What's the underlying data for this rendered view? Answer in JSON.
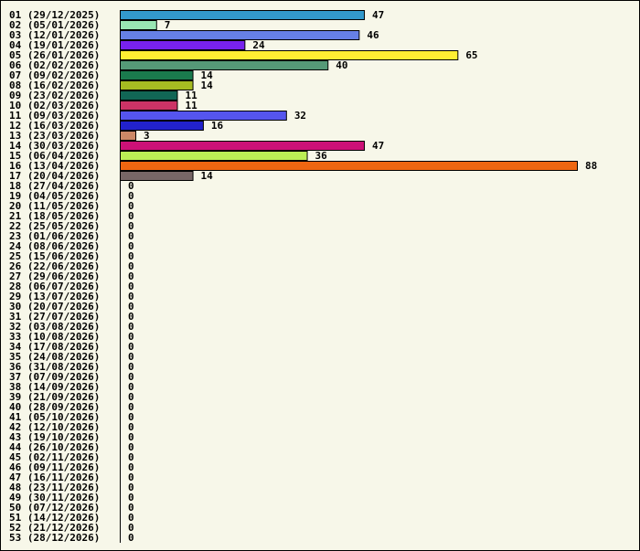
{
  "chart_data": {
    "type": "bar",
    "orientation": "horizontal",
    "title": "",
    "xlabel": "",
    "ylabel": "",
    "grid": false,
    "xlim": [
      0,
      88
    ],
    "categories": [
      "01 (29/12/2025)",
      "02 (05/01/2026)",
      "03 (12/01/2026)",
      "04 (19/01/2026)",
      "05 (26/01/2026)",
      "06 (02/02/2026)",
      "07 (09/02/2026)",
      "08 (16/02/2026)",
      "09 (23/02/2026)",
      "10 (02/03/2026)",
      "11 (09/03/2026)",
      "12 (16/03/2026)",
      "13 (23/03/2026)",
      "14 (30/03/2026)",
      "15 (06/04/2026)",
      "16 (13/04/2026)",
      "17 (20/04/2026)",
      "18 (27/04/2026)",
      "19 (04/05/2026)",
      "20 (11/05/2026)",
      "21 (18/05/2026)",
      "22 (25/05/2026)",
      "23 (01/06/2026)",
      "24 (08/06/2026)",
      "25 (15/06/2026)",
      "26 (22/06/2026)",
      "27 (29/06/2026)",
      "28 (06/07/2026)",
      "29 (13/07/2026)",
      "30 (20/07/2026)",
      "31 (27/07/2026)",
      "32 (03/08/2026)",
      "33 (10/08/2026)",
      "34 (17/08/2026)",
      "35 (24/08/2026)",
      "36 (31/08/2026)",
      "37 (07/09/2026)",
      "38 (14/09/2026)",
      "39 (21/09/2026)",
      "40 (28/09/2026)",
      "41 (05/10/2026)",
      "42 (12/10/2026)",
      "43 (19/10/2026)",
      "44 (26/10/2026)",
      "45 (02/11/2026)",
      "46 (09/11/2026)",
      "47 (16/11/2026)",
      "48 (23/11/2026)",
      "49 (30/11/2026)",
      "50 (07/12/2026)",
      "51 (14/12/2026)",
      "52 (21/12/2026)",
      "53 (28/12/2026)"
    ],
    "values": [
      47,
      7,
      46,
      24,
      65,
      40,
      14,
      14,
      11,
      11,
      32,
      16,
      3,
      47,
      36,
      88,
      14,
      0,
      0,
      0,
      0,
      0,
      0,
      0,
      0,
      0,
      0,
      0,
      0,
      0,
      0,
      0,
      0,
      0,
      0,
      0,
      0,
      0,
      0,
      0,
      0,
      0,
      0,
      0,
      0,
      0,
      0,
      0,
      0,
      0,
      0,
      0,
      0
    ],
    "colors": [
      "#3399cc",
      "#99e6b3",
      "#6680e6",
      "#7722ee",
      "#ffee33",
      "#559977",
      "#1a7a4d",
      "#a6bb22",
      "#116655",
      "#cc3366",
      "#5555ee",
      "#2222cc",
      "#cc8866",
      "#cc1177",
      "#bbee55",
      "#ee6611",
      "#776666"
    ]
  }
}
